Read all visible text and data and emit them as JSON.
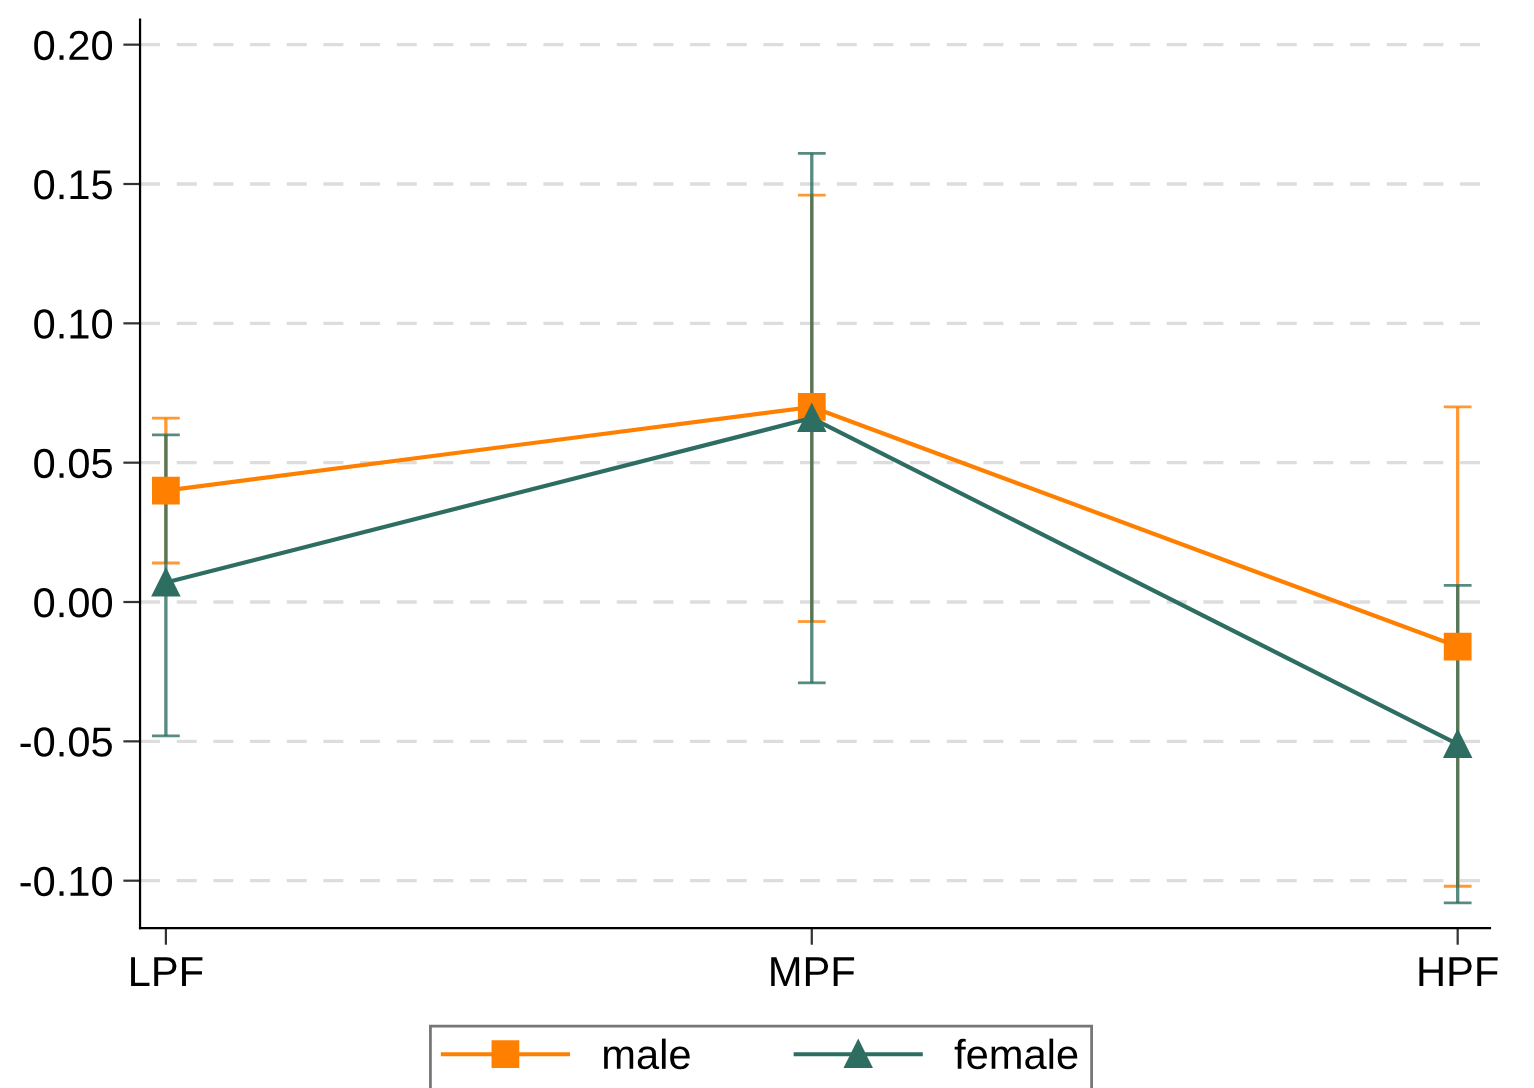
{
  "chart_data": {
    "type": "line",
    "categories": [
      "LPF",
      "MPF",
      "HPF"
    ],
    "series": [
      {
        "name": "male",
        "color": "#ff8000",
        "marker": "square",
        "values": [
          0.04,
          0.07,
          -0.016
        ],
        "errors": [
          [
            0.014,
            0.066
          ],
          [
            -0.007,
            0.146
          ],
          [
            -0.102,
            0.07
          ]
        ]
      },
      {
        "name": "female",
        "color": "#2e6e62",
        "marker": "triangle",
        "values": [
          0.007,
          0.066,
          -0.051
        ],
        "errors": [
          [
            -0.048,
            0.06
          ],
          [
            -0.029,
            0.161
          ],
          [
            -0.108,
            0.006
          ]
        ]
      }
    ],
    "ylim": [
      -0.117,
      0.209
    ],
    "yticks": [
      {
        "value": -0.1,
        "label": "-0.10"
      },
      {
        "value": -0.05,
        "label": "-0.05"
      },
      {
        "value": 0,
        "label": "0.00"
      },
      {
        "value": 0.05,
        "label": "0.05"
      },
      {
        "value": 0.1,
        "label": "0.10"
      },
      {
        "value": 0.15,
        "label": "0.15"
      },
      {
        "value": 0.2,
        "label": "0.20"
      }
    ],
    "grid": "y",
    "legend": "bottom",
    "line_style": "solid"
  }
}
